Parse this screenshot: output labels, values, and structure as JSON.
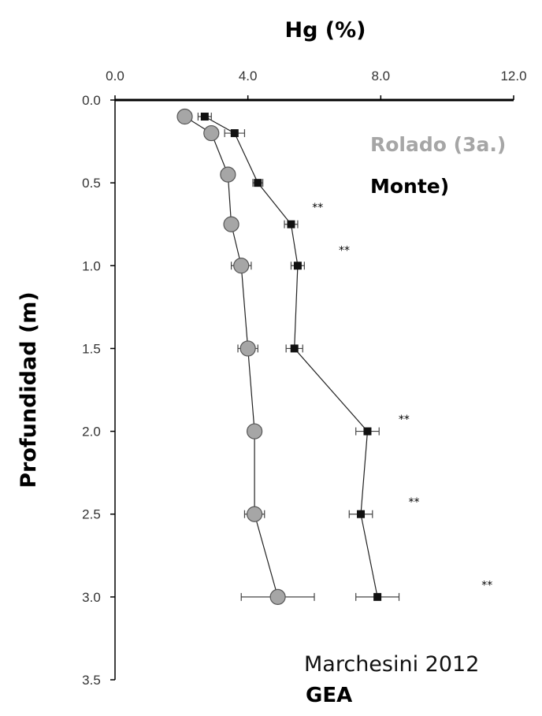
{
  "chart_data": {
    "type": "scatter",
    "title": "",
    "xlabel": "Hg (%)",
    "ylabel": "Profundidad (m)",
    "x_axis_position": "top",
    "y_inverted": true,
    "xlim": [
      0,
      12
    ],
    "ylim": [
      0,
      3.5
    ],
    "xticks": [
      "0.0",
      "4.0",
      "8.0",
      "12.0"
    ],
    "xtick_values": [
      0,
      4,
      8,
      12
    ],
    "yticks": [
      "0.0",
      "0.5",
      "1.0",
      "1.5",
      "2.0",
      "2.5",
      "3.0",
      "3.5"
    ],
    "ytick_values": [
      0,
      0.5,
      1,
      1.5,
      2,
      2.5,
      3,
      3.5
    ],
    "grid": false,
    "legend_position": "right",
    "series": [
      {
        "name": "Rolado (3a.)",
        "marker": "circle",
        "color": "#a6a6a6",
        "points": [
          {
            "x": 2.1,
            "y": 0.1,
            "err": 0.2
          },
          {
            "x": 2.9,
            "y": 0.2,
            "err": 0.2
          },
          {
            "x": 3.4,
            "y": 0.45,
            "err": 0.2
          },
          {
            "x": 3.5,
            "y": 0.75,
            "err": 0.2
          },
          {
            "x": 3.8,
            "y": 1.0,
            "err": 0.3
          },
          {
            "x": 4.0,
            "y": 1.5,
            "err": 0.3
          },
          {
            "x": 4.2,
            "y": 2.0,
            "err": 0.2
          },
          {
            "x": 4.2,
            "y": 2.5,
            "err": 0.3
          },
          {
            "x": 4.9,
            "y": 3.0,
            "err": 1.1
          }
        ]
      },
      {
        "name": "Monte)",
        "marker": "square",
        "color": "#111111",
        "points": [
          {
            "x": 2.7,
            "y": 0.1,
            "err": 0.2
          },
          {
            "x": 3.6,
            "y": 0.2,
            "err": 0.3
          },
          {
            "x": 4.3,
            "y": 0.5,
            "err": 0.15
          },
          {
            "x": 5.3,
            "y": 0.75,
            "err": 0.2
          },
          {
            "x": 5.5,
            "y": 1.0,
            "err": 0.2
          },
          {
            "x": 5.4,
            "y": 1.5,
            "err": 0.25
          },
          {
            "x": 7.6,
            "y": 2.0,
            "err": 0.35
          },
          {
            "x": 7.4,
            "y": 2.5,
            "err": 0.35
          },
          {
            "x": 7.9,
            "y": 3.0,
            "err": 0.65
          }
        ]
      }
    ],
    "annotations": [
      {
        "text": "**",
        "x": 6.1,
        "y": 0.67
      },
      {
        "text": "**",
        "x": 6.9,
        "y": 0.93
      },
      {
        "text": "**",
        "x": 8.7,
        "y": 1.95
      },
      {
        "text": "**",
        "x": 9.0,
        "y": 2.45
      },
      {
        "text": "**",
        "x": 11.2,
        "y": 2.95
      }
    ]
  },
  "credit": {
    "author": "Marchesini  2012",
    "organization": "GEA"
  }
}
